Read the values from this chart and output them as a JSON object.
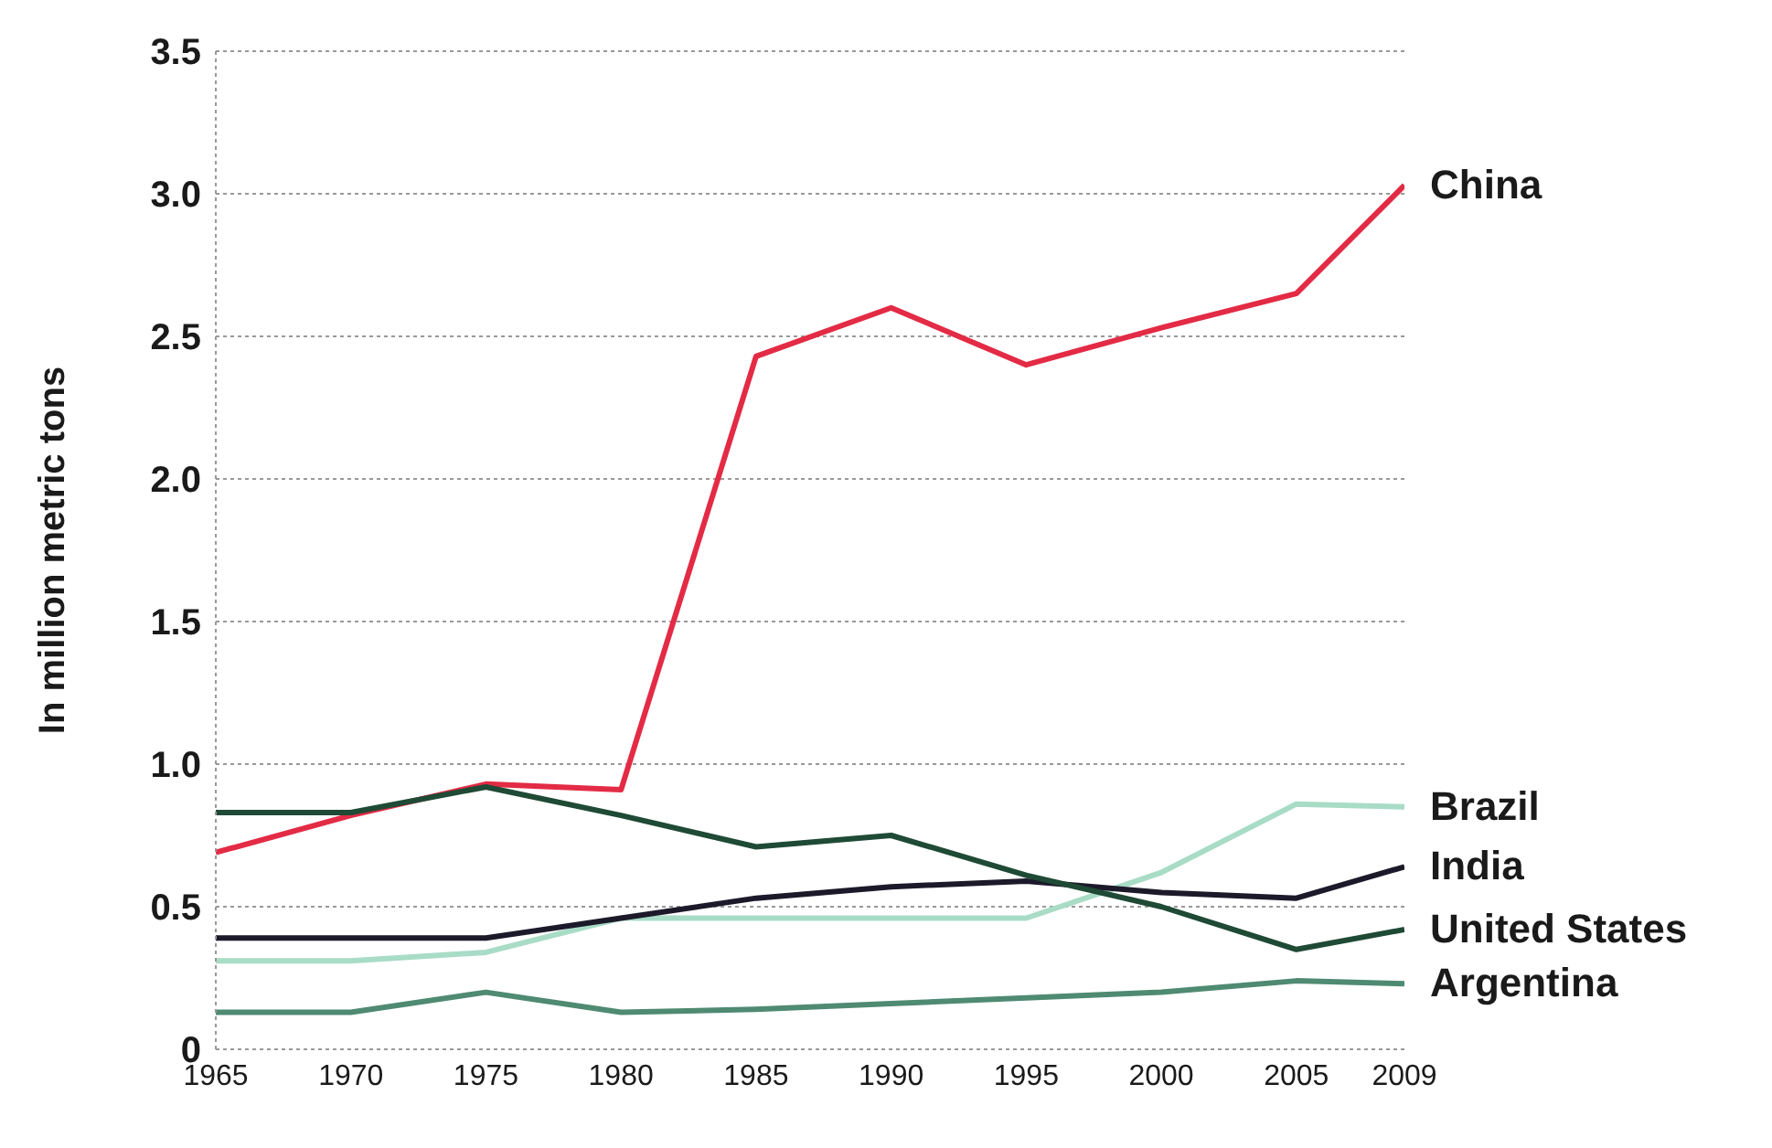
{
  "chart_data": {
    "type": "line",
    "ylabel": "In million metric tons",
    "x": [
      1965,
      1970,
      1975,
      1980,
      1985,
      1990,
      1995,
      2000,
      2005,
      2009
    ],
    "series": [
      {
        "name": "China",
        "color": "#e32b45",
        "values": [
          0.69,
          0.82,
          0.93,
          0.91,
          2.43,
          2.6,
          2.4,
          2.53,
          2.65,
          3.03
        ]
      },
      {
        "name": "Brazil",
        "color": "#a8dcc6",
        "values": [
          0.31,
          0.31,
          0.34,
          0.46,
          0.46,
          0.46,
          0.46,
          0.62,
          0.86,
          0.85
        ]
      },
      {
        "name": "India",
        "color": "#1c1a2a",
        "values": [
          0.39,
          0.39,
          0.39,
          0.46,
          0.53,
          0.57,
          0.59,
          0.55,
          0.53,
          0.64
        ]
      },
      {
        "name": "United States",
        "color": "#1f4a35",
        "values": [
          0.83,
          0.83,
          0.92,
          0.82,
          0.71,
          0.75,
          0.61,
          0.5,
          0.35,
          0.42
        ]
      },
      {
        "name": "Argentina",
        "color": "#4f8a72",
        "values": [
          0.13,
          0.13,
          0.2,
          0.13,
          0.14,
          0.16,
          0.18,
          0.2,
          0.24,
          0.23
        ]
      }
    ],
    "xlim": [
      1965,
      2009
    ],
    "xticks": [
      1965,
      1970,
      1975,
      1980,
      1985,
      1990,
      1995,
      2000,
      2005,
      2009
    ],
    "ylim": [
      0,
      3.5
    ],
    "yticks": [
      0,
      {
        "value": 0.5,
        "label": "0.5"
      },
      {
        "value": 1,
        "label": "1.0"
      },
      {
        "value": 1.5,
        "label": "1.5"
      },
      {
        "value": 2,
        "label": "2.0"
      },
      {
        "value": 2.5,
        "label": "2.5"
      },
      {
        "value": 3,
        "label": "3.0"
      },
      {
        "value": 3.5,
        "label": "3.5"
      }
    ],
    "grid": "y",
    "marker": "none",
    "line_style": "solid"
  }
}
